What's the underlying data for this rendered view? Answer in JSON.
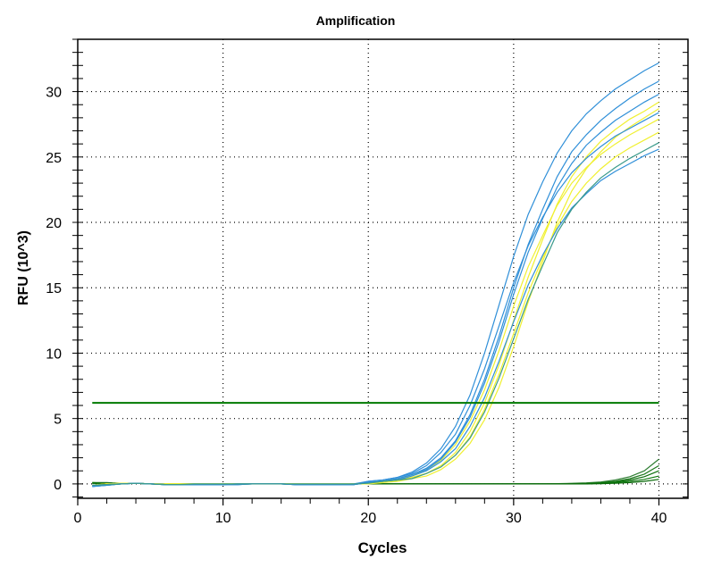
{
  "chart_data": {
    "type": "line",
    "title": "Amplification",
    "xlabel": "Cycles",
    "ylabel": "RFU (10^3)",
    "xlim": [
      0,
      42
    ],
    "ylim": [
      -1.1,
      34
    ],
    "xticks": [
      0,
      10,
      20,
      30,
      40
    ],
    "yticks": [
      0,
      5,
      10,
      15,
      20,
      25,
      30
    ],
    "grid": true,
    "legend": "none",
    "threshold": {
      "value": 6.2,
      "color": "#007a00"
    },
    "x": [
      1,
      2,
      3,
      4,
      5,
      6,
      7,
      8,
      9,
      10,
      11,
      12,
      13,
      14,
      15,
      16,
      17,
      18,
      19,
      20,
      21,
      22,
      23,
      24,
      25,
      26,
      27,
      28,
      29,
      30,
      31,
      32,
      33,
      34,
      35,
      36,
      37,
      38,
      39,
      40
    ],
    "series": [
      {
        "color": "#2f8fd8",
        "values": [
          -0.2,
          -0.1,
          0,
          0.05,
          0,
          -0.05,
          -0.05,
          -0.05,
          -0.05,
          -0.05,
          -0.05,
          0,
          0,
          0,
          -0.05,
          -0.05,
          -0.05,
          -0.05,
          -0.05,
          0.2,
          0.3,
          0.5,
          0.9,
          1.6,
          2.7,
          4.4,
          6.8,
          10.0,
          13.7,
          17.4,
          20.6,
          23.1,
          25.3,
          27.0,
          28.3,
          29.3,
          30.2,
          30.9,
          31.6,
          32.2
        ]
      },
      {
        "color": "#2f8fd8",
        "values": [
          -0.2,
          -0.1,
          0,
          0.05,
          0,
          -0.05,
          -0.05,
          -0.05,
          -0.05,
          -0.05,
          -0.05,
          0,
          0,
          0,
          -0.05,
          -0.05,
          -0.05,
          -0.05,
          -0.05,
          0.1,
          0.2,
          0.4,
          0.7,
          1.2,
          2.0,
          3.3,
          5.3,
          8.0,
          11.3,
          15.0,
          18.3,
          21.0,
          23.5,
          25.4,
          26.7,
          27.8,
          28.7,
          29.5,
          30.2,
          30.8
        ]
      },
      {
        "color": "#2f8fd8",
        "values": [
          -0.15,
          -0.05,
          0,
          0.05,
          0,
          -0.05,
          -0.05,
          -0.05,
          -0.05,
          -0.05,
          0,
          0,
          0,
          0,
          -0.05,
          -0.05,
          -0.05,
          -0.05,
          -0.05,
          0.1,
          0.2,
          0.4,
          0.7,
          1.1,
          1.9,
          3.2,
          5.1,
          7.7,
          10.9,
          14.5,
          17.7,
          20.3,
          22.7,
          24.5,
          25.9,
          26.9,
          27.8,
          28.5,
          29.2,
          29.8
        ]
      },
      {
        "color": "#2f8fd8",
        "values": [
          -0.2,
          -0.1,
          0,
          0.05,
          0,
          -0.05,
          -0.05,
          -0.05,
          -0.05,
          -0.05,
          -0.05,
          0,
          0,
          0,
          -0.05,
          -0.05,
          -0.05,
          -0.05,
          -0.05,
          0.1,
          0.2,
          0.3,
          0.6,
          1.0,
          1.7,
          2.7,
          4.4,
          6.6,
          9.4,
          12.4,
          15.2,
          17.5,
          19.5,
          21.1,
          22.2,
          23.2,
          23.9,
          24.5,
          25.1,
          25.6
        ]
      },
      {
        "color": "#2f8fd8",
        "values": [
          -0.1,
          -0.05,
          0,
          0.05,
          0,
          -0.05,
          -0.05,
          -0.05,
          -0.05,
          -0.05,
          0,
          0,
          0,
          0,
          -0.05,
          -0.05,
          -0.05,
          -0.05,
          0,
          0.2,
          0.3,
          0.5,
          0.8,
          1.4,
          2.4,
          3.8,
          6.0,
          8.8,
          12.1,
          15.4,
          18.2,
          20.4,
          22.3,
          23.8,
          24.9,
          25.8,
          26.6,
          27.2,
          27.8,
          28.4
        ]
      },
      {
        "color": "#f0f030",
        "values": [
          -0.1,
          0,
          0.05,
          0.05,
          0,
          0,
          0,
          0,
          0,
          0,
          0,
          0,
          0,
          0,
          0,
          0,
          0,
          0,
          0,
          0.05,
          0.2,
          0.3,
          0.5,
          0.8,
          1.4,
          2.4,
          4.0,
          6.2,
          9.1,
          12.5,
          15.8,
          18.7,
          21.4,
          23.5,
          25.0,
          26.2,
          27.1,
          27.9,
          28.5,
          29.2
        ]
      },
      {
        "color": "#f0f030",
        "values": [
          -0.1,
          0,
          0.05,
          0.05,
          0,
          0,
          0,
          0,
          0,
          0,
          0,
          0,
          0,
          0,
          0,
          0,
          0,
          0,
          0,
          0,
          0.1,
          0.2,
          0.4,
          0.6,
          1.1,
          1.9,
          3.1,
          4.9,
          7.4,
          10.5,
          13.9,
          17.0,
          20.0,
          22.4,
          24.1,
          25.4,
          26.5,
          27.3,
          28.0,
          28.7
        ]
      },
      {
        "color": "#f0f030",
        "values": [
          -0.1,
          0,
          0.05,
          0.05,
          0,
          0,
          0,
          0,
          0,
          0,
          0,
          0,
          0,
          0,
          0,
          0,
          0,
          0,
          0,
          0.05,
          0.2,
          0.3,
          0.5,
          0.8,
          1.3,
          2.2,
          3.6,
          5.7,
          8.4,
          11.5,
          14.6,
          17.3,
          19.7,
          21.6,
          23.0,
          24.1,
          25.0,
          25.7,
          26.3,
          26.9
        ]
      },
      {
        "color": "#f0f030",
        "values": [
          -0.1,
          0,
          0.05,
          0.05,
          0,
          0,
          0,
          0,
          0,
          0,
          0,
          0,
          0,
          0,
          0,
          0,
          0,
          0,
          0,
          0.1,
          0.2,
          0.4,
          0.6,
          1.1,
          1.8,
          3.0,
          4.8,
          7.2,
          10.2,
          13.6,
          16.6,
          19.0,
          21.3,
          23.0,
          24.2,
          25.2,
          26.0,
          26.7,
          27.3,
          27.9
        ]
      },
      {
        "color": "#3a9a8a",
        "values": [
          -0.1,
          -0.05,
          0,
          0.05,
          0,
          -0.05,
          -0.05,
          0,
          0,
          0,
          0,
          0,
          0,
          0,
          0,
          0,
          0,
          0,
          0,
          0.05,
          0.2,
          0.3,
          0.4,
          0.8,
          1.3,
          2.2,
          3.5,
          5.5,
          8.1,
          11.1,
          14.1,
          16.7,
          19.2,
          21.0,
          22.3,
          23.4,
          24.2,
          24.9,
          25.5,
          26.1
        ]
      },
      {
        "color": "#2e7d32",
        "values": [
          0.1,
          0.1,
          0.05,
          0.05,
          0,
          0,
          0,
          0,
          0,
          0,
          0,
          0,
          0,
          0,
          0,
          0,
          0,
          0,
          0,
          0,
          0,
          0,
          0,
          0,
          0,
          0,
          0,
          0,
          0,
          0,
          0,
          0,
          0.02,
          0.05,
          0.08,
          0.15,
          0.3,
          0.55,
          1.0,
          1.9
        ]
      },
      {
        "color": "#1f7a1f",
        "values": [
          0.05,
          0.05,
          0.05,
          0.05,
          0,
          0,
          0,
          0,
          0,
          0,
          0,
          0,
          0,
          0,
          0,
          0,
          0,
          0,
          0,
          0,
          0,
          0,
          0,
          0,
          0,
          0,
          0,
          0,
          0,
          0,
          0,
          0,
          0,
          0.02,
          0.05,
          0.1,
          0.2,
          0.4,
          0.75,
          1.4
        ]
      },
      {
        "color": "#0d700d",
        "values": [
          0.05,
          0.05,
          0.05,
          0.05,
          0,
          0,
          0,
          0,
          0,
          0,
          0,
          0,
          0,
          0,
          0,
          0,
          0,
          0,
          0,
          0,
          0,
          0,
          0,
          0,
          0,
          0,
          0,
          0,
          0,
          0,
          0,
          0,
          0,
          0.02,
          0.04,
          0.08,
          0.15,
          0.3,
          0.55,
          1.0
        ]
      },
      {
        "color": "#117a11",
        "values": [
          0.1,
          0.05,
          0.05,
          0.05,
          0,
          0,
          0,
          0,
          0,
          0,
          0,
          0,
          0,
          0,
          0,
          0,
          0,
          0,
          0,
          0,
          0,
          0,
          0,
          0,
          0,
          0,
          0,
          0,
          0,
          0,
          0,
          0,
          0,
          0,
          0.02,
          0.05,
          0.1,
          0.2,
          0.35,
          0.6
        ]
      },
      {
        "color": "#0a6a0a",
        "values": [
          0.05,
          0.05,
          0.05,
          0.05,
          0,
          0,
          0,
          0,
          0,
          0,
          0,
          0,
          0,
          0,
          0,
          0,
          0,
          0,
          0,
          0,
          0,
          0,
          0,
          0,
          0,
          0,
          0,
          0,
          0,
          0,
          0,
          0,
          0,
          0,
          0,
          0.02,
          0.05,
          0.1,
          0.2,
          0.35
        ]
      }
    ]
  }
}
